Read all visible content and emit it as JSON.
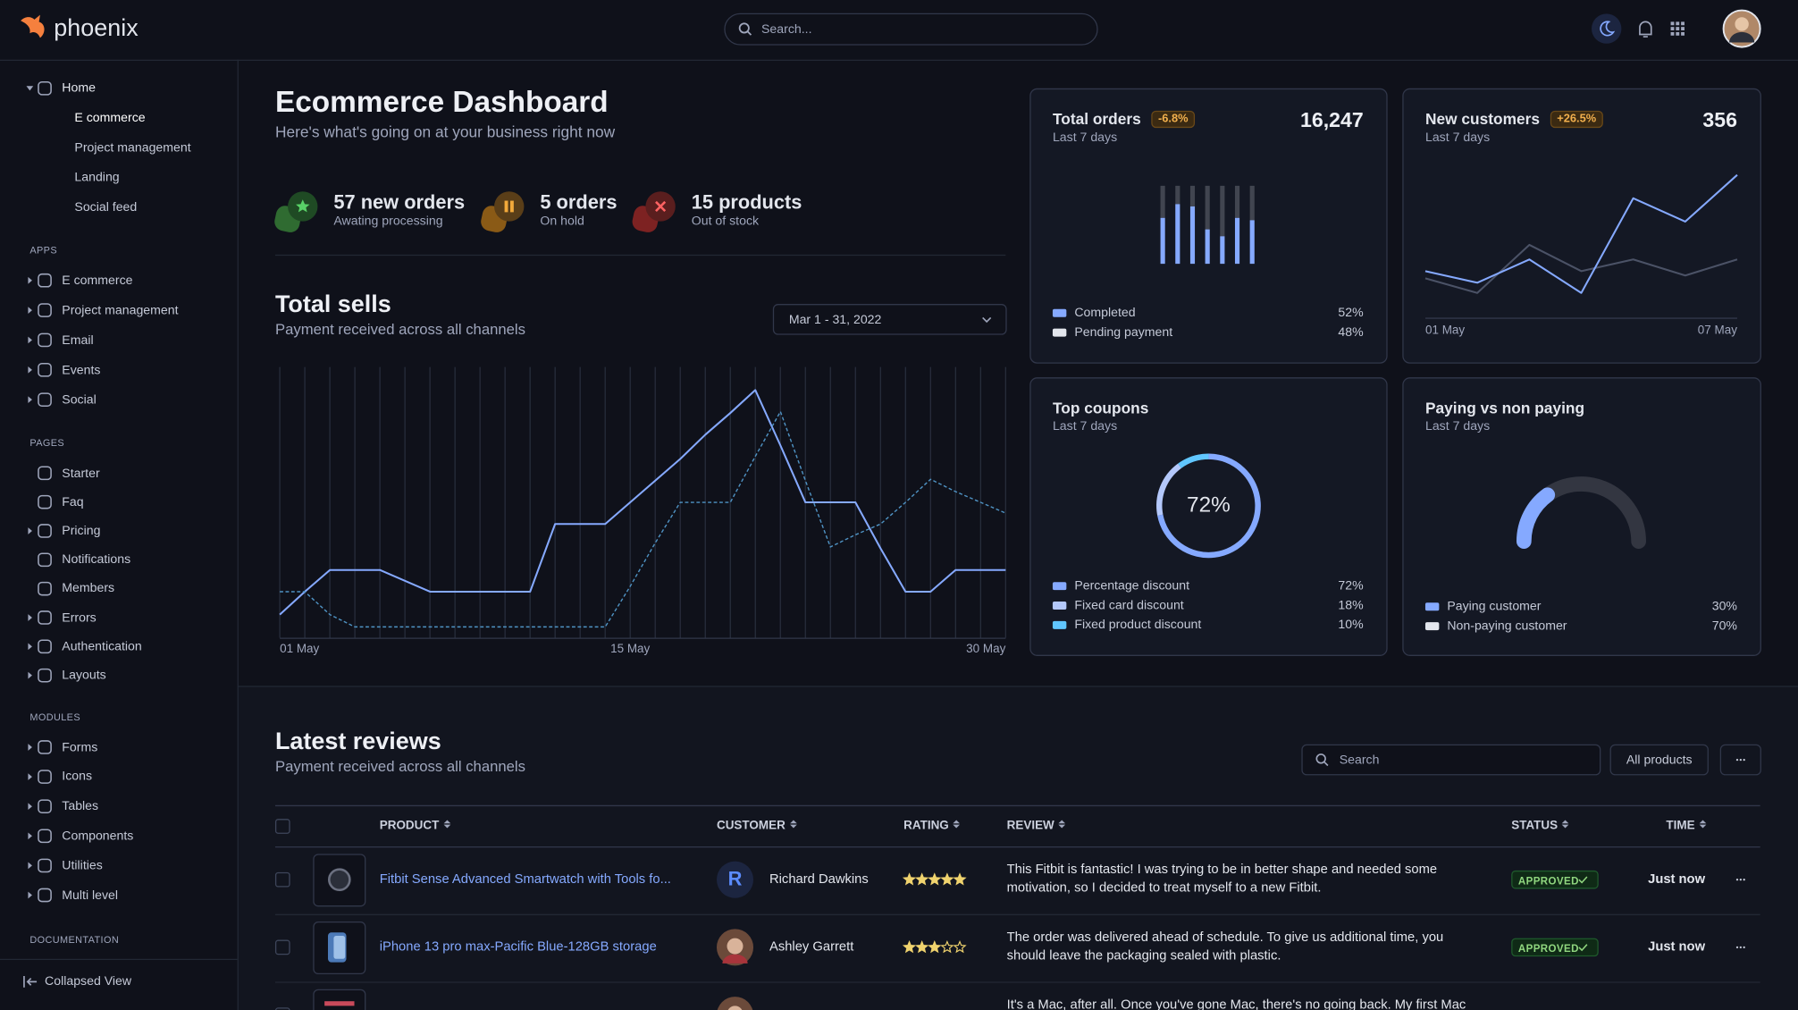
{
  "app": {
    "brand": "phoenix",
    "search_placeholder": "Search..."
  },
  "sidebar": {
    "home": {
      "label": "Home",
      "items": [
        "E commerce",
        "Project management",
        "Landing",
        "Social feed"
      ]
    },
    "sections": [
      {
        "title": "APPS",
        "items": [
          {
            "label": "E commerce",
            "expandable": true
          },
          {
            "label": "Project management",
            "expandable": true
          },
          {
            "label": "Email",
            "expandable": true
          },
          {
            "label": "Events",
            "expandable": true
          },
          {
            "label": "Social",
            "expandable": true
          }
        ]
      },
      {
        "title": "PAGES",
        "items": [
          {
            "label": "Starter",
            "expandable": false
          },
          {
            "label": "Faq",
            "expandable": false
          },
          {
            "label": "Pricing",
            "expandable": true
          },
          {
            "label": "Notifications",
            "expandable": false
          },
          {
            "label": "Members",
            "expandable": false
          },
          {
            "label": "Errors",
            "expandable": true
          },
          {
            "label": "Authentication",
            "expandable": true
          },
          {
            "label": "Layouts",
            "expandable": true
          }
        ]
      },
      {
        "title": "MODULES",
        "items": [
          {
            "label": "Forms",
            "expandable": true
          },
          {
            "label": "Icons",
            "expandable": true
          },
          {
            "label": "Tables",
            "expandable": true
          },
          {
            "label": "Components",
            "expandable": true
          },
          {
            "label": "Utilities",
            "expandable": true
          },
          {
            "label": "Multi level",
            "expandable": true
          }
        ]
      },
      {
        "title": "DOCUMENTATION",
        "items": []
      }
    ],
    "collapse": "Collapsed View"
  },
  "header": {
    "title": "Ecommerce Dashboard",
    "subtitle": "Here's what's going on at your business right now"
  },
  "stats": [
    {
      "value": "57 new orders",
      "label": "Awating processing"
    },
    {
      "value": "5 orders",
      "label": "On hold"
    },
    {
      "value": "15 products",
      "label": "Out of stock"
    }
  ],
  "total_sells": {
    "title": "Total sells",
    "subtitle": "Payment received across all channels",
    "date_range": "Mar 1 - 31, 2022",
    "chart": {
      "type": "line",
      "x": [
        1,
        2,
        3,
        4,
        5,
        6,
        7,
        8,
        9,
        10,
        11,
        12,
        13,
        14,
        15,
        16,
        17,
        18,
        19,
        20,
        21,
        22,
        23,
        24,
        25,
        26,
        27,
        28,
        29,
        30
      ],
      "xticks": [
        {
          "value": 1,
          "label": "01 May"
        },
        {
          "value": 15,
          "label": "15 May"
        },
        {
          "value": 30,
          "label": "30 May"
        }
      ],
      "ylim": [
        0,
        100
      ],
      "grid": true,
      "series": [
        {
          "color": "#85a9ff",
          "values": [
            8.5,
            17,
            25,
            25,
            25,
            21,
            17,
            17,
            17,
            17,
            17,
            42,
            42,
            42,
            50,
            58,
            66,
            75,
            83,
            91.5,
            71,
            50,
            50,
            50,
            33,
            17,
            17,
            25,
            25,
            25
          ]
        },
        {
          "color": "#4f93c4",
          "dashed": true,
          "values": [
            17,
            17,
            8.5,
            4,
            4,
            4,
            4,
            4,
            4,
            4,
            4,
            4,
            4,
            4,
            19,
            35,
            50,
            50,
            50,
            67,
            83.5,
            58,
            33.5,
            38,
            42,
            50,
            58.5,
            54,
            50,
            46
          ]
        }
      ]
    }
  },
  "cards": {
    "total_orders": {
      "title": "Total orders",
      "badge": "-6.8%",
      "subtitle": "Last 7 days",
      "total": "16,247",
      "chart": {
        "type": "bar",
        "stacked": true,
        "categories": [
          null,
          null,
          null,
          null,
          null,
          null,
          null
        ],
        "ylim": [
          0,
          68
        ],
        "series": [
          {
            "name": "Completed",
            "color": "#85a9ff",
            "share": "52%",
            "values": [
              40,
              52,
              50,
              30,
              24,
              40,
              38
            ]
          },
          {
            "name": "Pending payment",
            "color": "#e3e6ed",
            "share": "48%",
            "values": [
              28,
              16,
              18,
              38,
              44,
              28,
              30
            ]
          }
        ]
      }
    },
    "new_customers": {
      "title": "New customers",
      "badge": "+26.5%",
      "subtitle": "Last 7 days",
      "total": "356",
      "chart": {
        "type": "line",
        "categories": [
          "01 May",
          null,
          null,
          null,
          null,
          null,
          "07 May"
        ],
        "ylim": [
          0,
          100
        ],
        "series": [
          {
            "color": "#85a9ff",
            "values": [
              32,
              24,
              40,
              17,
              82,
              66,
              98
            ]
          },
          {
            "color": "#4b5266",
            "values": [
              27,
              17,
              50,
              32,
              40,
              29,
              40
            ]
          }
        ]
      }
    },
    "top_coupons": {
      "title": "Top coupons",
      "subtitle": "Last 7 days",
      "chart": {
        "type": "donut",
        "center_label": "72%",
        "series": [
          {
            "name": "Percentage discount",
            "color": "#85a9ff",
            "value": 72,
            "label": "72%"
          },
          {
            "name": "Fixed card discount",
            "color": "#b4c8fb",
            "value": 18,
            "label": "18%"
          },
          {
            "name": "Fixed product discount",
            "color": "#60c6ff",
            "value": 10,
            "label": "10%"
          }
        ]
      }
    },
    "paying": {
      "title": "Paying vs non paying",
      "subtitle": "Last 7 days",
      "chart": {
        "type": "gauge",
        "series": [
          {
            "name": "Paying customer",
            "color": "#85a9ff",
            "value": 30,
            "label": "30%"
          },
          {
            "name": "Non-paying customer",
            "color": "#e3e6ed",
            "value": 70,
            "label": "70%"
          }
        ]
      }
    }
  },
  "reviews": {
    "title": "Latest reviews",
    "subtitle": "Payment received across all channels",
    "search_placeholder": "Search",
    "filter": "All products",
    "rating_scale": 5,
    "columns": [
      "PRODUCT",
      "CUSTOMER",
      "RATING",
      "REVIEW",
      "STATUS",
      "TIME"
    ],
    "rows": [
      {
        "product": "Fitbit Sense Advanced Smartwatch with Tools fo...",
        "customer": "Richard Dawkins",
        "avatar_initial": "R",
        "rating": 5,
        "review": "This Fitbit is fantastic! I was trying to be in better shape and needed some motivation, so I decided to treat myself to a new Fitbit.",
        "status": "APPROVED",
        "time": "Just now"
      },
      {
        "product": "iPhone 13 pro max-Pacific Blue-128GB storage",
        "customer": "Ashley Garrett",
        "rating": 3,
        "review": "The order was delivered ahead of schedule. To give us additional time, you should leave the packaging sealed with plastic.",
        "status": "APPROVED",
        "time": "Just now"
      },
      {
        "review": "It's a Mac, after all. Once you've gone Mac, there's no going back. My first Mac lasted"
      }
    ]
  }
}
